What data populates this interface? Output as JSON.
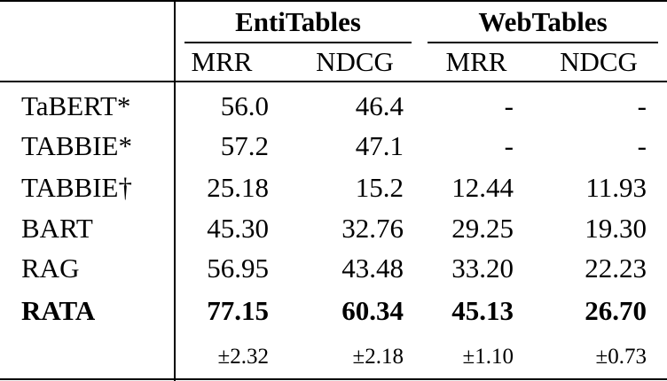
{
  "table": {
    "groups": [
      "EntiTables",
      "WebTables"
    ],
    "columns": [
      "MRR",
      "NDCG",
      "MRR",
      "NDCG"
    ],
    "rows": [
      {
        "label": "TaBERT*",
        "cells": [
          "56.0",
          "46.4",
          "-",
          "-"
        ]
      },
      {
        "label": "TABBIE*",
        "cells": [
          "57.2",
          "47.1",
          "-",
          "-"
        ]
      },
      {
        "label": "TABBIE†",
        "cells": [
          "25.18",
          "15.2",
          "12.44",
          "11.93"
        ]
      },
      {
        "label": "BART",
        "cells": [
          "45.30",
          "32.76",
          "29.25",
          "19.30"
        ]
      },
      {
        "label": "RAG",
        "cells": [
          "56.95",
          "43.48",
          "33.20",
          "22.23"
        ]
      },
      {
        "label": "RATA",
        "cells": [
          "77.15",
          "60.34",
          "45.13",
          "26.70"
        ],
        "bold": true
      },
      {
        "cells": [
          "±2.32",
          "±2.18",
          "±1.10",
          "±0.73"
        ],
        "small": true
      }
    ]
  }
}
